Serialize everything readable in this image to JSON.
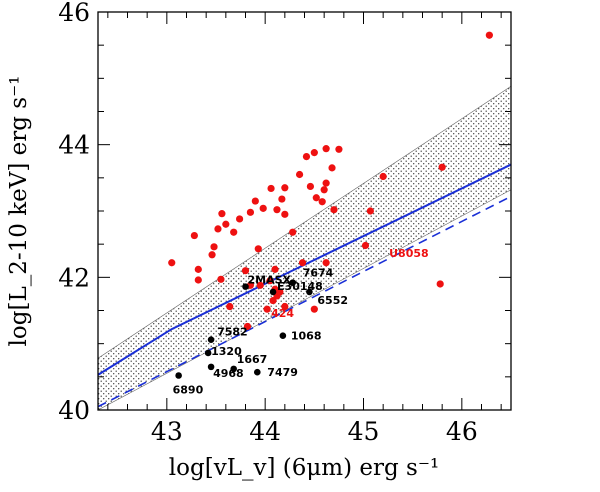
{
  "chart_data": {
    "type": "scatter",
    "xlabel": "log[vL_v] (6μm) erg s⁻¹",
    "ylabel": "log[L_2-10 keV] erg s⁻¹",
    "xlim": [
      42.3,
      46.5
    ],
    "ylim": [
      40.0,
      46.0
    ],
    "x_ticks": [
      43,
      44,
      45,
      46
    ],
    "y_ticks": [
      40,
      42,
      44,
      46
    ],
    "grid": false,
    "colors": {
      "red": "#ee1111",
      "black": "#000000",
      "blue": "#1a2fd6",
      "hatch": "#555555"
    },
    "series": [
      {
        "color": "red",
        "points": [
          [
            43.05,
            42.22
          ],
          [
            43.28,
            42.63
          ],
          [
            43.32,
            42.12
          ],
          [
            43.32,
            41.96
          ],
          [
            43.48,
            42.46
          ],
          [
            43.52,
            42.73
          ],
          [
            43.56,
            42.96
          ],
          [
            43.6,
            42.8
          ],
          [
            43.46,
            42.34
          ],
          [
            43.55,
            41.97
          ],
          [
            43.64,
            41.56
          ],
          [
            43.68,
            42.68
          ],
          [
            43.74,
            42.88
          ],
          [
            43.8,
            42.1
          ],
          [
            43.85,
            42.98
          ],
          [
            43.85,
            41.88
          ],
          [
            43.9,
            43.15
          ],
          [
            43.93,
            42.43
          ],
          [
            43.98,
            43.04
          ],
          [
            44.06,
            43.34
          ],
          [
            44.1,
            42.12
          ],
          [
            44.12,
            43.02
          ],
          [
            44.17,
            43.18
          ],
          [
            44.2,
            43.35
          ],
          [
            44.2,
            42.95
          ],
          [
            44.28,
            42.68
          ],
          [
            44.35,
            43.55
          ],
          [
            44.38,
            42.22
          ],
          [
            44.42,
            43.82
          ],
          [
            44.46,
            43.37
          ],
          [
            44.5,
            43.88
          ],
          [
            44.52,
            43.2
          ],
          [
            44.58,
            43.14
          ],
          [
            44.6,
            43.32
          ],
          [
            44.62,
            43.42
          ],
          [
            44.62,
            43.94
          ],
          [
            44.68,
            43.65
          ],
          [
            44.7,
            43.02
          ],
          [
            44.75,
            43.93
          ],
          [
            44.62,
            42.22
          ],
          [
            44.5,
            41.52
          ],
          [
            44.2,
            41.56
          ],
          [
            44.12,
            41.72
          ],
          [
            44.08,
            41.65
          ],
          [
            44.02,
            41.52
          ],
          [
            44.1,
            41.82
          ],
          [
            44.05,
            41.95
          ],
          [
            43.95,
            41.88
          ],
          [
            43.82,
            41.26
          ],
          [
            44.15,
            41.78
          ],
          [
            45.02,
            42.48
          ],
          [
            45.07,
            43.0
          ],
          [
            45.2,
            43.52
          ],
          [
            45.78,
            41.9
          ],
          [
            45.8,
            43.66
          ],
          [
            46.28,
            45.65
          ]
        ]
      },
      {
        "color": "black",
        "points": [
          [
            43.12,
            40.52
          ],
          [
            43.42,
            40.86
          ],
          [
            43.45,
            41.06
          ],
          [
            43.45,
            40.65
          ],
          [
            43.68,
            40.62
          ],
          [
            43.8,
            41.86
          ],
          [
            43.92,
            40.57
          ],
          [
            44.08,
            41.78
          ],
          [
            44.18,
            41.12
          ],
          [
            44.28,
            41.92
          ],
          [
            44.45,
            41.78
          ]
        ]
      }
    ],
    "labels": [
      {
        "text": "6890",
        "x": 43.12,
        "y": 40.52,
        "color": "black"
      },
      {
        "text": "1320",
        "x": 43.42,
        "y": 40.86,
        "color": "black"
      },
      {
        "text": "7582",
        "x": 43.45,
        "y": 41.06,
        "color": "black"
      },
      {
        "text": "4968",
        "x": 43.45,
        "y": 40.65,
        "color": "black"
      },
      {
        "text": "1667",
        "x": 43.68,
        "y": 40.62,
        "color": "black"
      },
      {
        "text": "7479",
        "x": 43.92,
        "y": 40.57,
        "color": "black"
      },
      {
        "text": "2MASX",
        "x": 43.8,
        "y": 41.86,
        "color": "black"
      },
      {
        "text": "1068",
        "x": 44.18,
        "y": 41.12,
        "color": "black"
      },
      {
        "text": "E30148",
        "x": 44.08,
        "y": 41.78,
        "color": "black"
      },
      {
        "text": "7674",
        "x": 44.28,
        "y": 41.92,
        "color": "black"
      },
      {
        "text": "6552",
        "x": 44.45,
        "y": 41.78,
        "color": "black"
      },
      {
        "text": "424",
        "x": 44.02,
        "y": 41.52,
        "color": "red"
      },
      {
        "text": "U8058",
        "x": 45.22,
        "y": 42.28,
        "color": "red"
      }
    ],
    "solid_line": [
      [
        42.3,
        40.53
      ],
      [
        43.05,
        41.22
      ],
      [
        46.5,
        43.7
      ]
    ],
    "dashed_line": [
      [
        42.3,
        40.05
      ],
      [
        46.5,
        43.22
      ]
    ],
    "hatched_band": {
      "upper": [
        [
          42.3,
          40.78
        ],
        [
          46.5,
          44.88
        ]
      ],
      "lower": [
        [
          42.3,
          40.0
        ],
        [
          46.5,
          43.32
        ]
      ]
    }
  }
}
